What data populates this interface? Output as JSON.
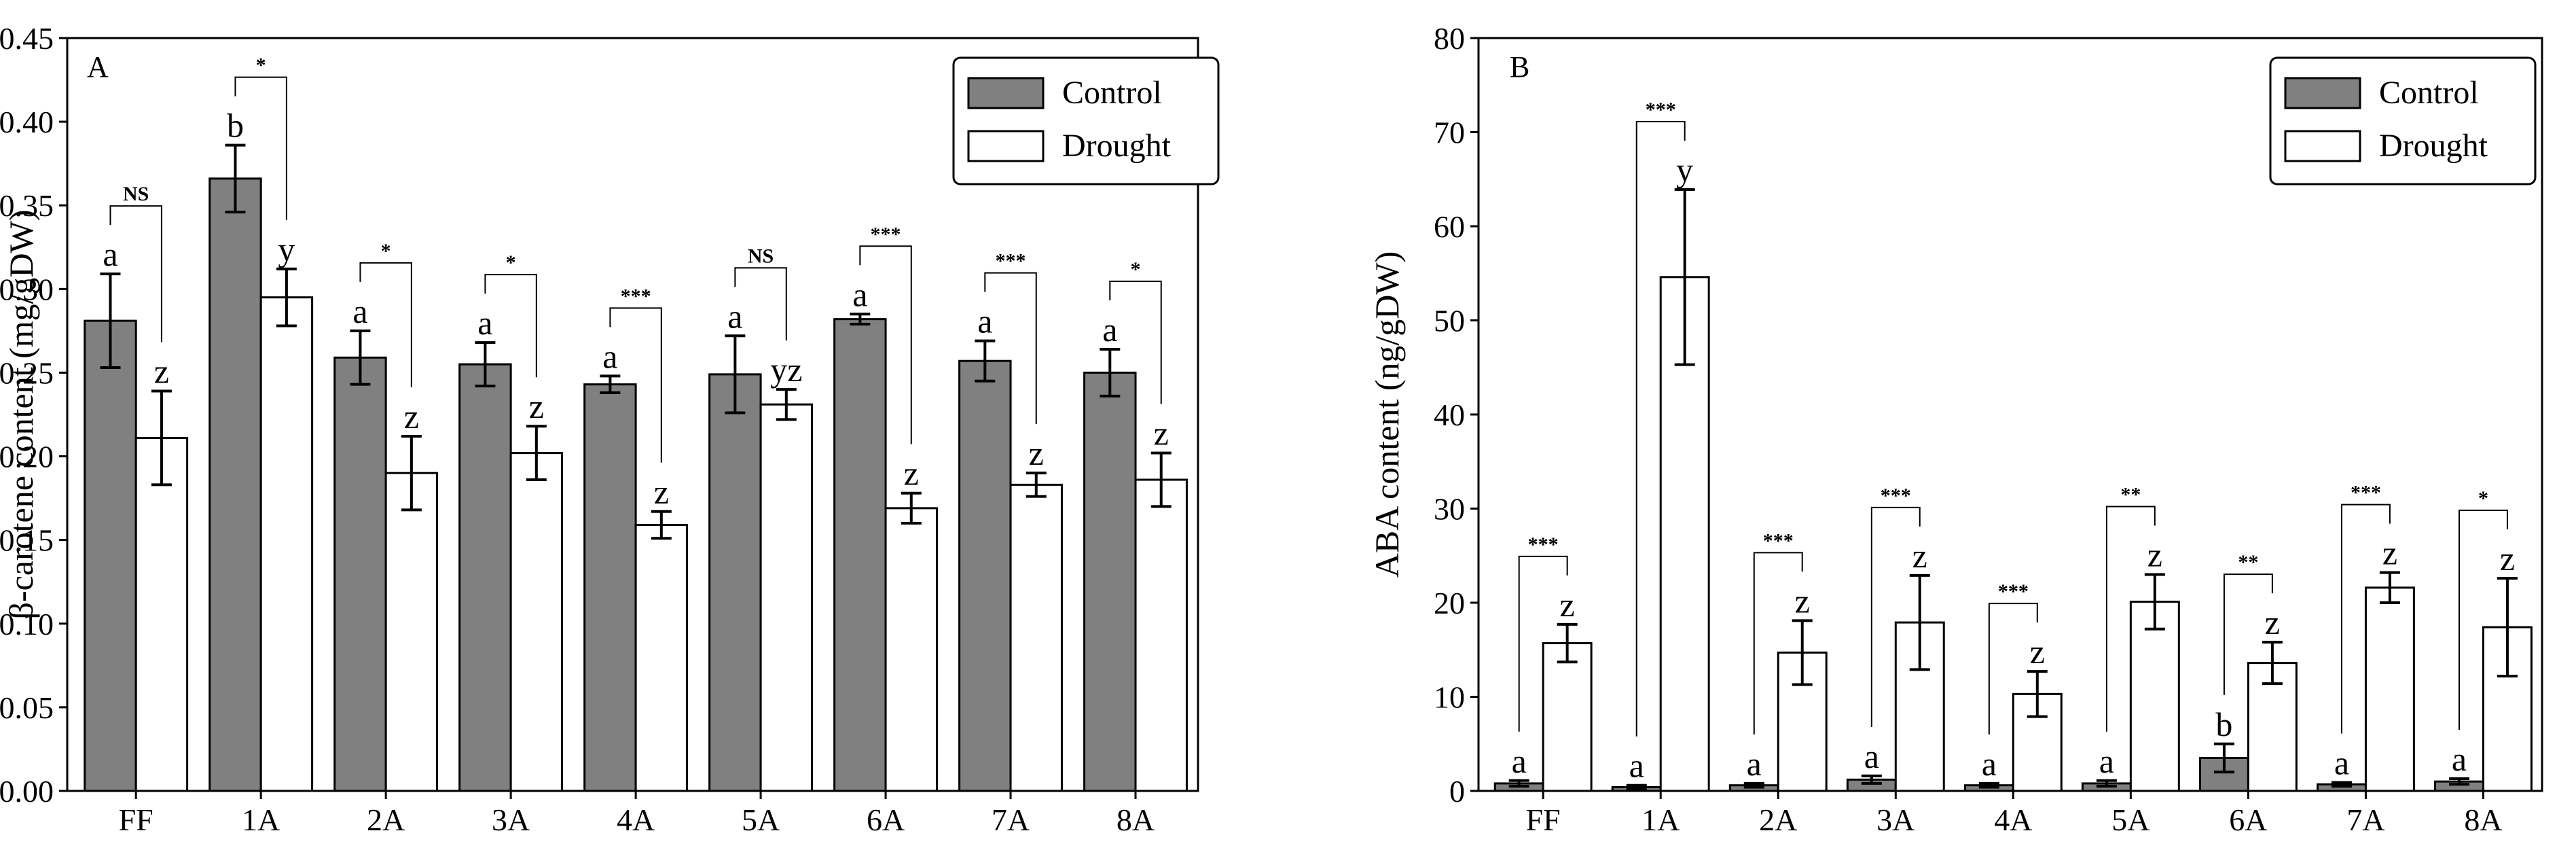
{
  "chart_data": [
    {
      "type": "bar",
      "panel_label": "A",
      "ylabel": "β-carotene content (mg/gDW)",
      "xlabel": "",
      "categories": [
        "FF",
        "1A",
        "2A",
        "3A",
        "4A",
        "5A",
        "6A",
        "7A",
        "8A"
      ],
      "ylim": [
        0,
        0.45
      ],
      "yticks": [
        0.0,
        0.05,
        0.1,
        0.15,
        0.2,
        0.25,
        0.3,
        0.35,
        0.4,
        0.45
      ],
      "ytick_labels": [
        "0.00",
        "0.05",
        "0.10",
        "0.15",
        "0.20",
        "0.25",
        "0.30",
        "0.35",
        "0.40",
        "0.45"
      ],
      "legend_position": "top-right",
      "series": [
        {
          "name": "Control",
          "color": "#808080",
          "values": [
            0.281,
            0.366,
            0.259,
            0.255,
            0.243,
            0.249,
            0.282,
            0.257,
            0.25
          ],
          "errors": [
            0.028,
            0.02,
            0.016,
            0.013,
            0.005,
            0.023,
            0.003,
            0.012,
            0.014
          ],
          "letters": [
            "a",
            "b",
            "a",
            "a",
            "a",
            "a",
            "a",
            "a",
            "a"
          ]
        },
        {
          "name": "Drought",
          "color": "#ffffff",
          "values": [
            0.211,
            0.295,
            0.19,
            0.202,
            0.159,
            0.231,
            0.169,
            0.183,
            0.186
          ],
          "errors": [
            0.028,
            0.017,
            0.022,
            0.016,
            0.008,
            0.009,
            0.009,
            0.007,
            0.016
          ],
          "letters": [
            "z",
            "y",
            "z",
            "z",
            "z",
            "yz",
            "z",
            "z",
            "z"
          ]
        }
      ],
      "significance": [
        "NS",
        "*",
        "*",
        "*",
        "***",
        "NS",
        "***",
        "***",
        "*"
      ]
    },
    {
      "type": "bar",
      "panel_label": "B",
      "ylabel": "ABA content (ng/gDW)",
      "xlabel": "",
      "categories": [
        "FF",
        "1A",
        "2A",
        "3A",
        "4A",
        "5A",
        "6A",
        "7A",
        "8A"
      ],
      "ylim": [
        0,
        80
      ],
      "yticks": [
        0,
        10,
        20,
        30,
        40,
        50,
        60,
        70,
        80
      ],
      "ytick_labels": [
        "0",
        "10",
        "20",
        "30",
        "40",
        "50",
        "60",
        "70",
        "80"
      ],
      "legend_position": "top-right",
      "series": [
        {
          "name": "Control",
          "color": "#808080",
          "values": [
            0.8,
            0.4,
            0.6,
            1.2,
            0.6,
            0.8,
            3.5,
            0.7,
            1.0
          ],
          "errors": [
            0.3,
            0.2,
            0.2,
            0.4,
            0.2,
            0.3,
            1.5,
            0.2,
            0.3
          ],
          "letters": [
            "a",
            "a",
            "a",
            "a",
            "a",
            "a",
            "b",
            "a",
            "a"
          ]
        },
        {
          "name": "Drought",
          "color": "#ffffff",
          "values": [
            15.7,
            54.6,
            14.7,
            17.9,
            10.3,
            20.1,
            13.6,
            21.6,
            17.4
          ],
          "errors": [
            2.0,
            9.3,
            3.4,
            5.0,
            2.4,
            2.9,
            2.2,
            1.6,
            5.2
          ],
          "letters": [
            "z",
            "y",
            "z",
            "z",
            "z",
            "z",
            "z",
            "z",
            "z"
          ]
        }
      ],
      "significance": [
        "***",
        "***",
        "***",
        "***",
        "***",
        "**",
        "**",
        "***",
        "*"
      ]
    }
  ]
}
